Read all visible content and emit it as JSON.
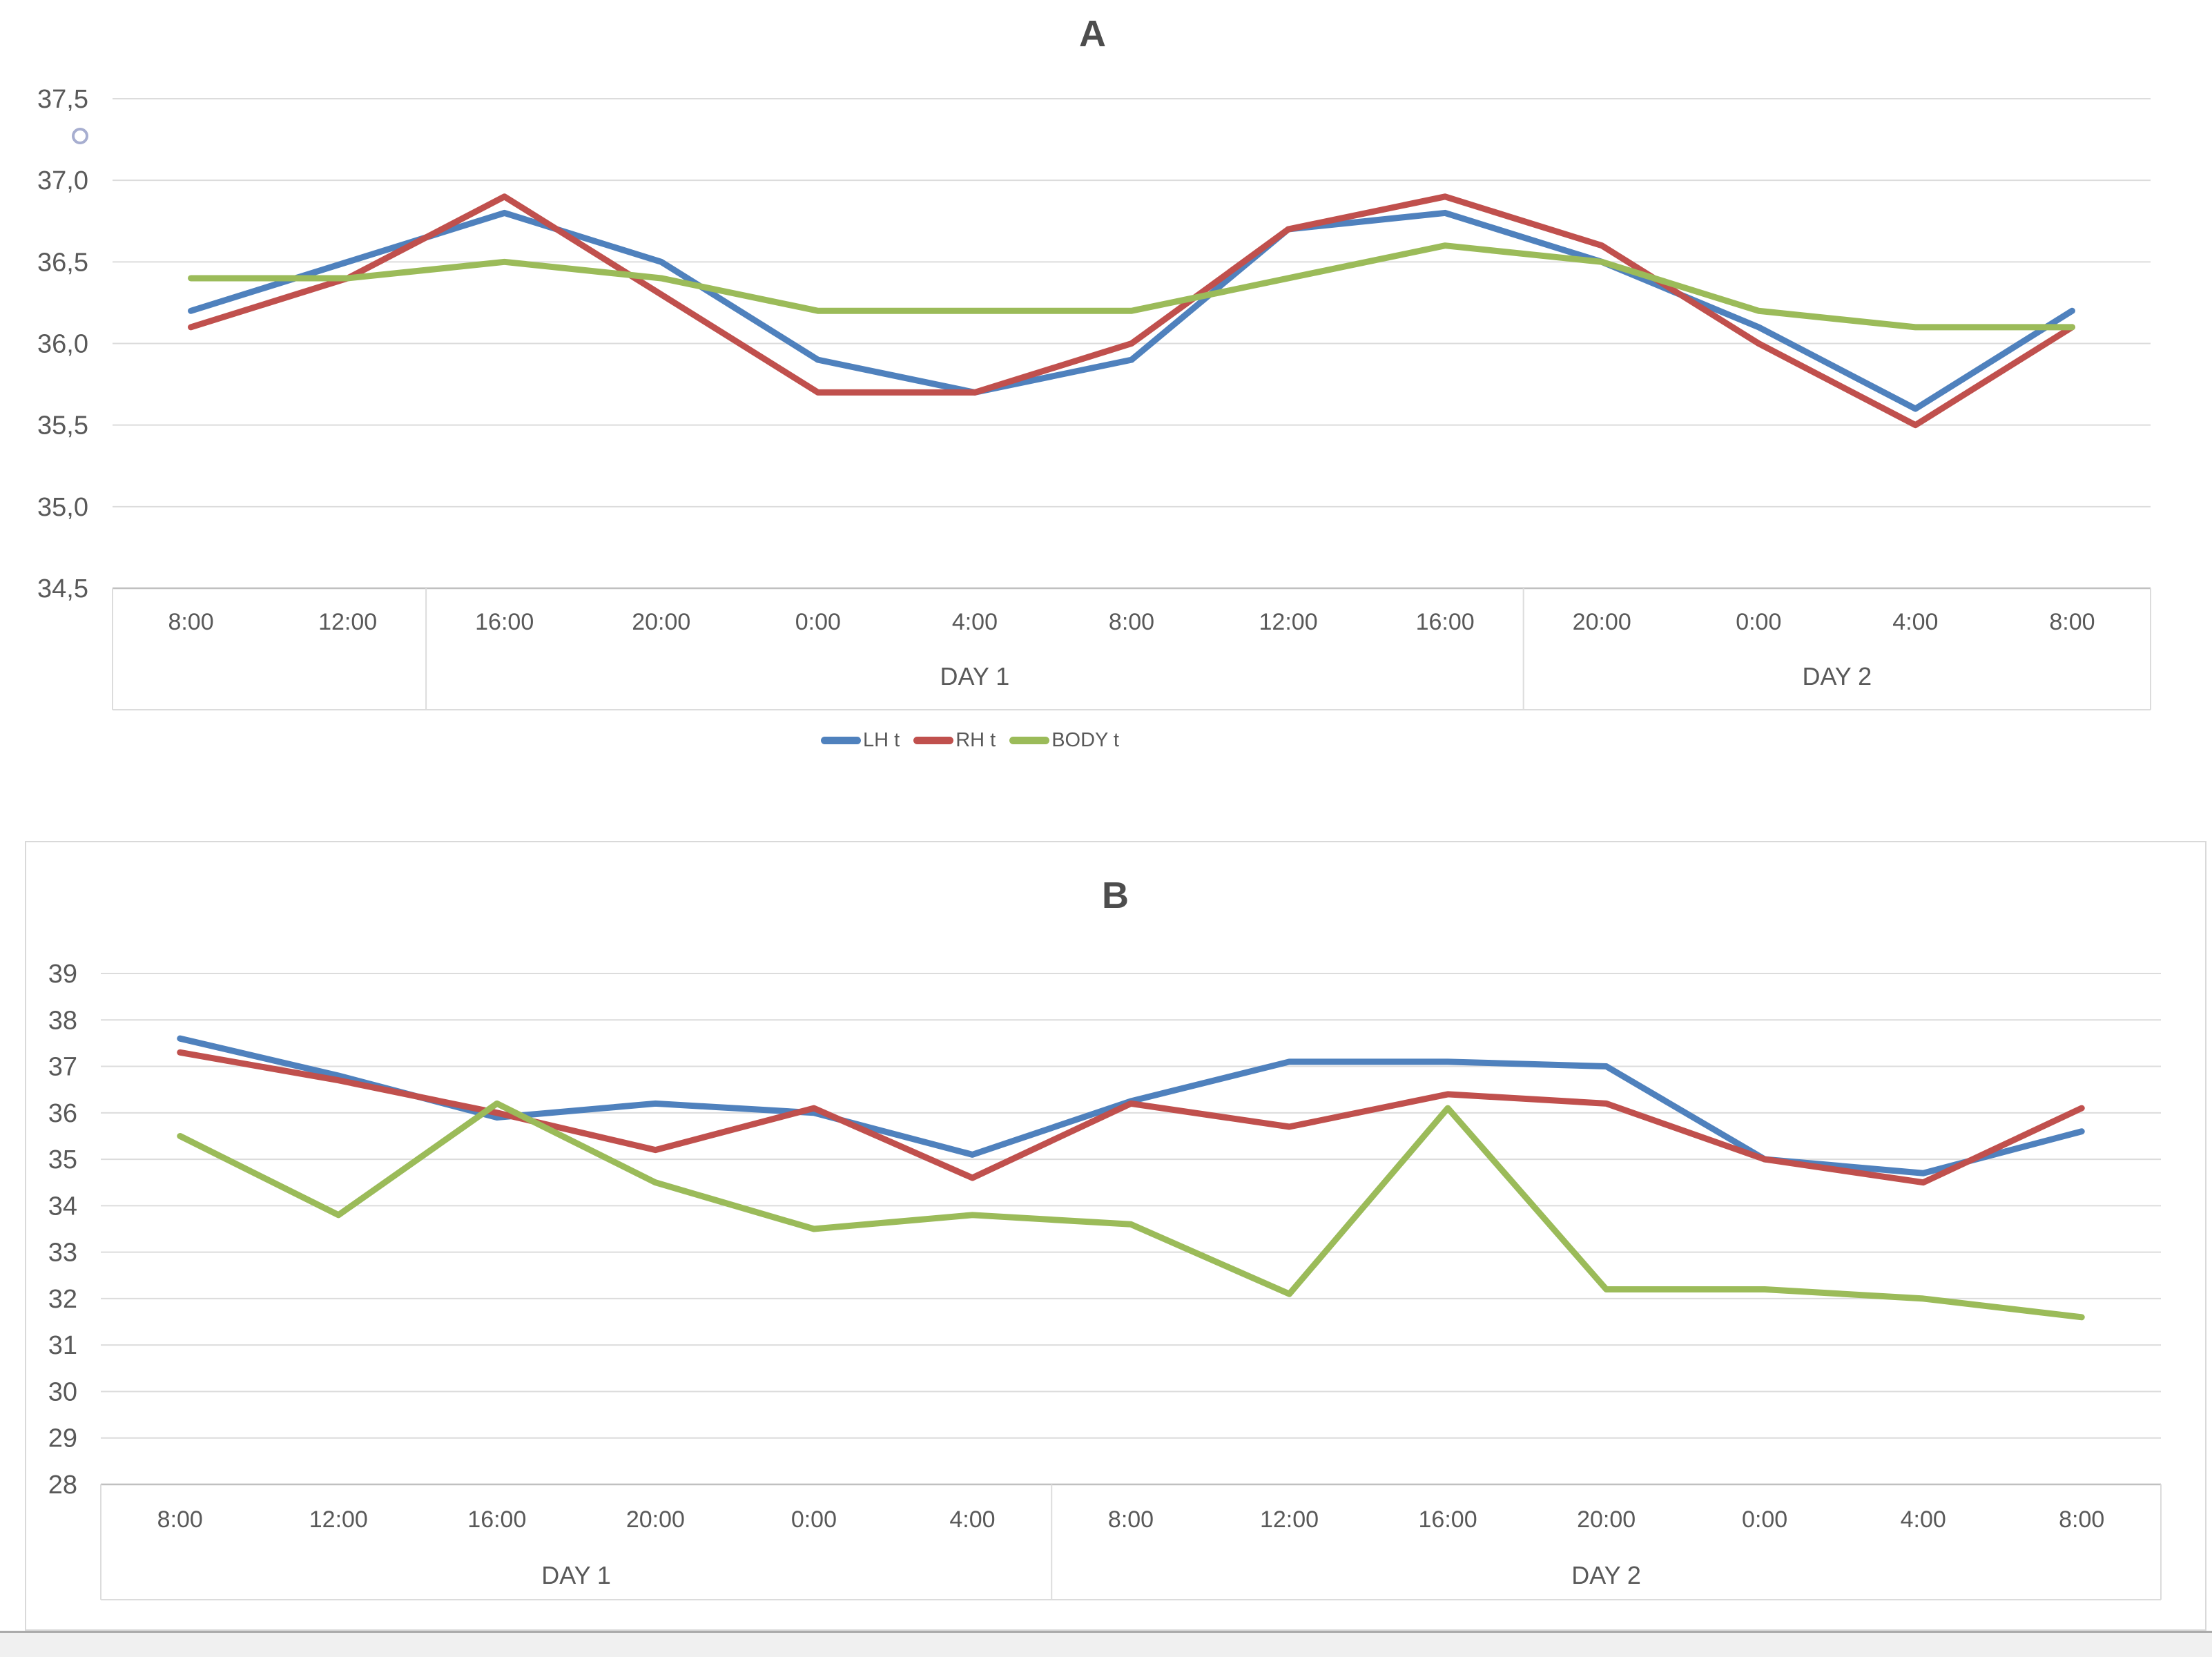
{
  "chart_data": [
    {
      "id": "chart-a",
      "type": "line",
      "title": "A",
      "stray_marker": "o",
      "categories": [
        "8:00",
        "12:00",
        "16:00",
        "20:00",
        "0:00",
        "4:00",
        "8:00",
        "12:00",
        "16:00",
        "20:00",
        "0:00",
        "4:00",
        "8:00"
      ],
      "day_groups": [
        {
          "label": "",
          "from": 0,
          "to": 1
        },
        {
          "label": "DAY 1",
          "from": 2,
          "to": 8
        },
        {
          "label": "DAY 2",
          "from": 9,
          "to": 12
        }
      ],
      "ylim": [
        34.5,
        37.5
      ],
      "ytick_step": 0.5,
      "ytick_labels_top_to_bottom": [
        "37,5",
        "37,0",
        "36,5",
        "36,0",
        "35,5",
        "35,0",
        "34,5"
      ],
      "grid": true,
      "legend_position": "bottom",
      "series": [
        {
          "name": "LH t",
          "color": "#4F81BD",
          "values": [
            36.2,
            36.5,
            36.8,
            36.5,
            35.9,
            35.7,
            35.9,
            36.7,
            36.8,
            36.5,
            36.1,
            35.6,
            36.2
          ]
        },
        {
          "name": "RH t",
          "color": "#C0504D",
          "values": [
            36.1,
            36.4,
            36.9,
            36.3,
            35.7,
            35.7,
            36.0,
            36.7,
            36.9,
            36.6,
            36.0,
            35.5,
            36.1
          ]
        },
        {
          "name": "BODY t",
          "color": "#9BBB59",
          "values": [
            36.4,
            36.4,
            36.5,
            36.4,
            36.2,
            36.2,
            36.2,
            36.4,
            36.6,
            36.5,
            36.2,
            36.1,
            36.1
          ]
        }
      ]
    },
    {
      "id": "chart-b",
      "type": "line",
      "title": "B",
      "categories": [
        "8:00",
        "12:00",
        "16:00",
        "20:00",
        "0:00",
        "4:00",
        "8:00",
        "12:00",
        "16:00",
        "20:00",
        "0:00",
        "4:00",
        "8:00"
      ],
      "day_groups": [
        {
          "label": "DAY 1",
          "from": 0,
          "to": 5
        },
        {
          "label": "DAY 2",
          "from": 6,
          "to": 12
        }
      ],
      "ylim": [
        28,
        39
      ],
      "ytick_step": 1,
      "ytick_labels_top_to_bottom": [
        "39",
        "38",
        "37",
        "36",
        "35",
        "34",
        "33",
        "32",
        "31",
        "30",
        "29",
        "28"
      ],
      "grid": true,
      "legend_position": "none",
      "series": [
        {
          "name": "LH t",
          "color": "#4F81BD",
          "values": [
            37.6,
            36.8,
            35.9,
            36.2,
            36.0,
            35.1,
            36.25,
            37.1,
            37.1,
            37.0,
            35.0,
            34.7,
            35.6
          ]
        },
        {
          "name": "RH t",
          "color": "#C0504D",
          "values": [
            37.3,
            36.7,
            36.0,
            35.2,
            36.1,
            34.6,
            36.2,
            35.7,
            36.4,
            36.2,
            35.0,
            34.5,
            36.1
          ]
        },
        {
          "name": "BODY t",
          "color": "#9BBB59",
          "values": [
            35.5,
            33.8,
            36.2,
            34.5,
            33.5,
            33.8,
            33.6,
            32.1,
            36.1,
            32.2,
            32.2,
            32.0,
            31.6
          ]
        }
      ]
    }
  ]
}
